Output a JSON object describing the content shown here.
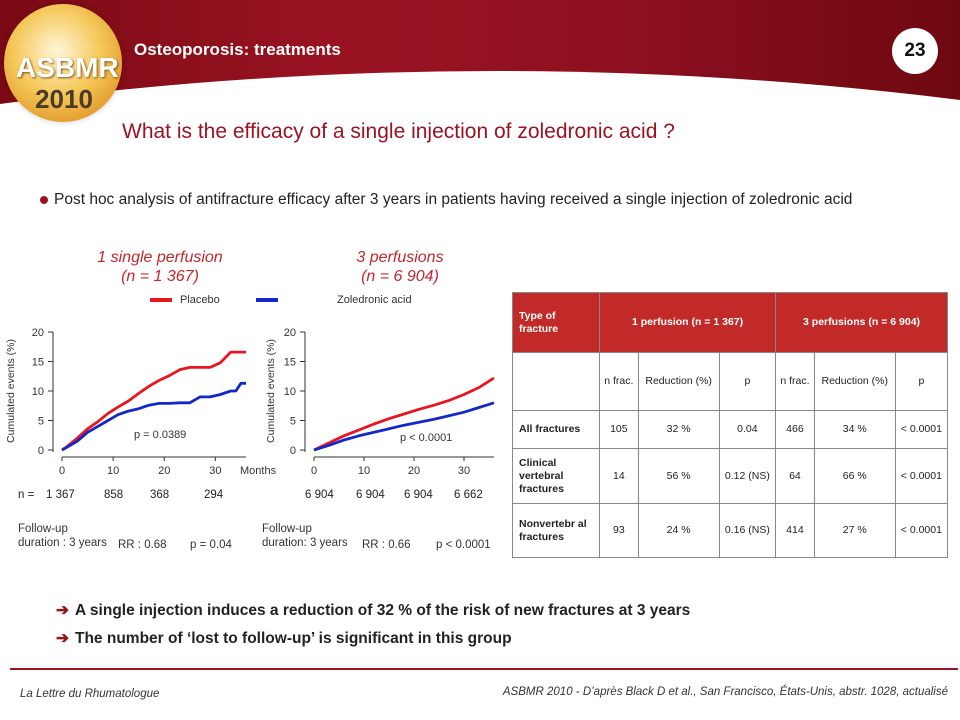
{
  "header": {
    "title": "Osteoporosis: treatments",
    "page_number": "23",
    "logo_text": "ASBMR",
    "logo_year": "2010"
  },
  "main_title": "What is the efficacy of a single injection of zoledronic acid ?",
  "bullet": "Post hoc analysis of antifracture efficacy after 3 years in patients having received a single injection of zoledronic acid",
  "left_panel": {
    "title_line1": "1 single perfusion",
    "title_line2": "(n = 1 367)"
  },
  "right_panel": {
    "title_line1": "3 perfusions",
    "title_line2": "(n = 6 904)"
  },
  "legend": {
    "placebo": "Placebo",
    "zoledronic": "Zoledronic acid",
    "placebo_color": "#e8141e",
    "zoledronic_color": "#1428c8"
  },
  "chart_data": [
    {
      "type": "line",
      "ylabel": "Cumulated events (%)",
      "xlabel": "Months",
      "x_ticks": [
        "0",
        "10",
        "20",
        "30"
      ],
      "y_ticks": [
        "0",
        "5",
        "10",
        "15",
        "20"
      ],
      "xlim": [
        0,
        36
      ],
      "ylim": [
        0,
        20
      ],
      "annotation": "p = 0.0389",
      "n_label": "n =",
      "n_at_risk": [
        "1 367",
        "858",
        "368",
        "294"
      ],
      "series": [
        {
          "name": "Placebo",
          "color": "#e8141e",
          "x": [
            0,
            1,
            3,
            5,
            7,
            9,
            11,
            13,
            15,
            17,
            19,
            21,
            23,
            25,
            27,
            29,
            31,
            33,
            34,
            35,
            36
          ],
          "y": [
            0,
            0.6,
            2.0,
            3.6,
            4.8,
            6.2,
            7.3,
            8.3,
            9.6,
            10.8,
            11.8,
            12.6,
            13.6,
            14.0,
            14.0,
            14.0,
            14.8,
            16.6,
            16.6,
            16.6,
            16.6
          ]
        },
        {
          "name": "Zoledronic acid",
          "color": "#1428c8",
          "x": [
            0,
            1,
            3,
            5,
            7,
            9,
            11,
            13,
            15,
            17,
            19,
            21,
            23,
            25,
            27,
            29,
            31,
            33,
            34,
            35,
            36
          ],
          "y": [
            0,
            0.5,
            1.5,
            3.0,
            4.0,
            5.0,
            6.0,
            6.6,
            7.0,
            7.6,
            7.9,
            7.9,
            8.0,
            8.0,
            9.0,
            9.0,
            9.4,
            10.0,
            10.0,
            11.3,
            11.3
          ]
        }
      ]
    },
    {
      "type": "line",
      "ylabel": "Cumulated events (%)",
      "xlabel": "",
      "x_ticks": [
        "0",
        "10",
        "20",
        "30"
      ],
      "y_ticks": [
        "0",
        "5",
        "10",
        "15",
        "20"
      ],
      "xlim": [
        0,
        36
      ],
      "ylim": [
        0,
        20
      ],
      "annotation": "p < 0.0001",
      "n_label": "",
      "n_at_risk": [
        "6 904",
        "6 904",
        "6 904",
        "6 662"
      ],
      "series": [
        {
          "name": "Placebo",
          "color": "#e8141e",
          "x": [
            0,
            3,
            6,
            9,
            12,
            15,
            18,
            21,
            24,
            27,
            30,
            33,
            36
          ],
          "y": [
            0,
            1.2,
            2.4,
            3.4,
            4.4,
            5.3,
            6.1,
            6.9,
            7.6,
            8.4,
            9.4,
            10.6,
            12.2
          ]
        },
        {
          "name": "Zoledronic acid",
          "color": "#1428c8",
          "x": [
            0,
            3,
            6,
            9,
            12,
            15,
            18,
            21,
            24,
            27,
            30,
            33,
            36
          ],
          "y": [
            0,
            0.8,
            1.7,
            2.4,
            3.0,
            3.6,
            4.2,
            4.7,
            5.2,
            5.8,
            6.4,
            7.2,
            8.0
          ]
        }
      ]
    }
  ],
  "left_followup": {
    "label": "Follow-up duration : 3 years",
    "rr": "RR : 0.68",
    "p": "p = 0.04"
  },
  "right_followup": {
    "label": "Follow-up duration: 3 years",
    "rr": "RR : 0.66",
    "p": "p < 0.0001"
  },
  "table": {
    "header": {
      "type": "Type of fracture",
      "group1": "1 perfusion (n = 1 367)",
      "group2": "3 perfusions (n = 6 904)"
    },
    "subheader": [
      "n frac.",
      "Reduction (%)",
      "p",
      "n frac.",
      "Reduction (%)",
      "p"
    ],
    "rows": [
      {
        "label": "All fractures",
        "cells": [
          "105",
          "32 %",
          "0.04",
          "466",
          "34 %",
          "< 0.0001"
        ]
      },
      {
        "label": "Clinical vertebral fractures",
        "cells": [
          "14",
          "56 %",
          "0.12 (NS)",
          "64",
          "66 %",
          "< 0.0001"
        ]
      },
      {
        "label": "Nonvertebr al fractures",
        "cells": [
          "93",
          "24 %",
          "0.16 (NS)",
          "414",
          "27 %",
          "< 0.0001"
        ]
      }
    ]
  },
  "conclusions": [
    "A single injection induces a  reduction of 32 % of the risk of new fractures at 3 years",
    "The  number of ‘lost to follow-up’ is significant in this group"
  ],
  "footer": {
    "left": "La Lettre du Rhumatologue",
    "right": "ASBMR 2010 - D’après Black D et al., San Francisco, États-Unis, abstr. 1028, actualisé"
  }
}
